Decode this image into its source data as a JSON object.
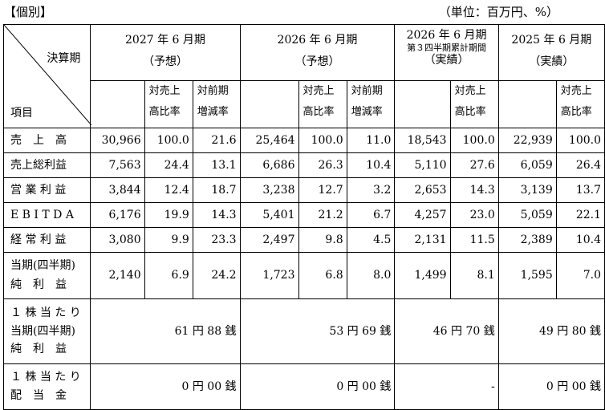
{
  "heading": "【個別】",
  "unit": "（単位：百万円、%）",
  "header": {
    "kessanki": "決算期",
    "koumoku": "項目",
    "groups": [
      {
        "year": "2027 年 6 月期",
        "note": "",
        "type": "（予想）"
      },
      {
        "year": "2026 年 6 月期",
        "note": "",
        "type": "（予想）"
      },
      {
        "year": "2026 年 6 月期",
        "note": "第３四半期累計期間",
        "type": "（実績）"
      },
      {
        "year": "2025 年 6 月期",
        "note": "",
        "type": "（実績）"
      }
    ],
    "ratio_sales": [
      "対売上",
      "高比率"
    ],
    "ratio_yoy": [
      "対前期",
      "増減率"
    ]
  },
  "rows": [
    {
      "label": "売　上　高",
      "v": [
        "30,966",
        "100.0",
        "21.6",
        "25,464",
        "100.0",
        "11.0",
        "18,543",
        "100.0",
        "22,939",
        "100.0"
      ]
    },
    {
      "label": "売上総利益",
      "v": [
        "7,563",
        "24.4",
        "13.1",
        "6,686",
        "26.3",
        "10.4",
        "5,110",
        "27.6",
        "6,059",
        "26.4"
      ]
    },
    {
      "label": "営 業 利 益",
      "v": [
        "3,844",
        "12.4",
        "18.7",
        "3,238",
        "12.7",
        "3.2",
        "2,653",
        "14.3",
        "3,139",
        "13.7"
      ]
    },
    {
      "label": "E B I T D A",
      "v": [
        "6,176",
        "19.9",
        "14.3",
        "5,401",
        "21.2",
        "6.7",
        "4,257",
        "23.0",
        "5,059",
        "22.1"
      ]
    },
    {
      "label": "経 常 利 益",
      "v": [
        "3,080",
        "9.9",
        "23.3",
        "2,497",
        "9.8",
        "4.5",
        "2,131",
        "11.5",
        "2,389",
        "10.4"
      ]
    }
  ],
  "net": {
    "label1": "当期(四半期)",
    "label2": "純　利　益",
    "v": [
      "2,140",
      "6.9",
      "24.2",
      "1,723",
      "6.8",
      "8.0",
      "1,499",
      "8.1",
      "1,595",
      "7.0"
    ]
  },
  "eps": {
    "label1": "１ 株 当 た り",
    "label2": "当期(四半期)",
    "label3": "純　利　益",
    "v": [
      "61 円 88 銭",
      "53 円 69 銭",
      "46 円 70 銭",
      "49 円 80 銭"
    ]
  },
  "dps": {
    "label1": "１ 株 当 た り",
    "label2": "配　当　金",
    "v": [
      "0 円 00 銭",
      "0 円 00 銭",
      "-",
      "0 円 00 銭"
    ]
  }
}
